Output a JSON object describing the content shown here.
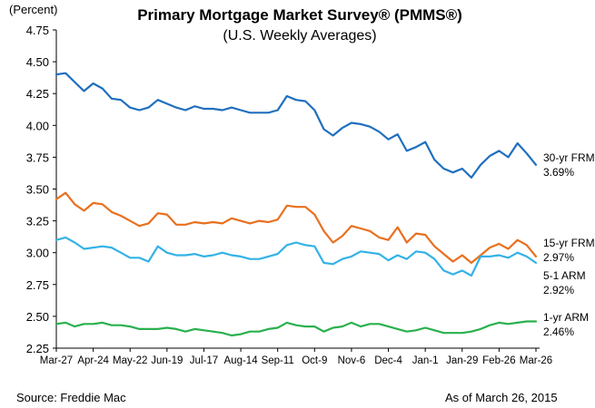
{
  "chart_data": {
    "type": "line",
    "title": "Primary Mortgage Market Survey® (PMMS®)",
    "subtitle": "(U.S. Weekly Averages)",
    "ylabel": "(Percent)",
    "xlabel": "",
    "ylim": [
      2.25,
      4.75
    ],
    "yticks": [
      "4.75",
      "4.50",
      "4.25",
      "4.00",
      "3.75",
      "3.50",
      "3.25",
      "3.00",
      "2.75",
      "2.50",
      "2.25"
    ],
    "x_tick_labels": [
      "Mar-27",
      "Apr-24",
      "May-22",
      "Jun-19",
      "Jul-17",
      "Aug-14",
      "Sep-11",
      "Oct-9",
      "Nov-6",
      "Dec-4",
      "Jan-1",
      "Jan-29",
      "Feb-26",
      "Mar-26"
    ],
    "grid": false,
    "source": "Source: Freddie Mac",
    "as_of": "As of March 26, 2015",
    "series": [
      {
        "name": "30-yr FRM",
        "end_label": "3.69%",
        "color": "#1f6fbf",
        "values": [
          4.4,
          4.41,
          4.34,
          4.27,
          4.33,
          4.29,
          4.21,
          4.2,
          4.14,
          4.12,
          4.14,
          4.2,
          4.17,
          4.14,
          4.12,
          4.15,
          4.13,
          4.13,
          4.12,
          4.14,
          4.12,
          4.1,
          4.1,
          4.1,
          4.12,
          4.23,
          4.2,
          4.19,
          4.12,
          3.97,
          3.92,
          3.98,
          4.02,
          4.01,
          3.99,
          3.95,
          3.89,
          3.93,
          3.8,
          3.83,
          3.87,
          3.73,
          3.66,
          3.63,
          3.66,
          3.59,
          3.69,
          3.76,
          3.8,
          3.75,
          3.86,
          3.78,
          3.69
        ]
      },
      {
        "name": "15-yr FRM",
        "end_label": "2.97%",
        "color": "#e8701e",
        "values": [
          3.42,
          3.47,
          3.38,
          3.33,
          3.39,
          3.38,
          3.32,
          3.29,
          3.25,
          3.21,
          3.23,
          3.31,
          3.3,
          3.22,
          3.22,
          3.24,
          3.23,
          3.24,
          3.23,
          3.27,
          3.25,
          3.23,
          3.25,
          3.24,
          3.26,
          3.37,
          3.36,
          3.36,
          3.3,
          3.17,
          3.08,
          3.13,
          3.21,
          3.19,
          3.17,
          3.12,
          3.1,
          3.2,
          3.08,
          3.15,
          3.14,
          3.05,
          2.99,
          2.93,
          2.98,
          2.92,
          2.98,
          3.04,
          3.07,
          3.03,
          3.1,
          3.06,
          2.97
        ]
      },
      {
        "name": "5-1 ARM",
        "end_label": "2.92%",
        "color": "#33b2e6",
        "values": [
          3.1,
          3.12,
          3.08,
          3.03,
          3.04,
          3.05,
          3.04,
          3.0,
          2.96,
          2.96,
          2.93,
          3.05,
          3.0,
          2.98,
          2.98,
          2.99,
          2.97,
          2.98,
          3.0,
          2.98,
          2.97,
          2.95,
          2.95,
          2.97,
          2.99,
          3.06,
          3.08,
          3.06,
          3.05,
          2.92,
          2.91,
          2.95,
          2.97,
          3.01,
          3.0,
          2.99,
          2.94,
          2.98,
          2.95,
          3.01,
          3.0,
          2.95,
          2.86,
          2.83,
          2.86,
          2.82,
          2.97,
          2.97,
          2.98,
          2.96,
          3.0,
          2.97,
          2.92
        ]
      },
      {
        "name": "1-yr ARM",
        "end_label": "2.46%",
        "color": "#2ab04e",
        "values": [
          2.44,
          2.45,
          2.42,
          2.44,
          2.44,
          2.45,
          2.43,
          2.43,
          2.42,
          2.4,
          2.4,
          2.4,
          2.41,
          2.4,
          2.38,
          2.4,
          2.39,
          2.38,
          2.37,
          2.35,
          2.36,
          2.38,
          2.38,
          2.4,
          2.41,
          2.45,
          2.43,
          2.42,
          2.42,
          2.38,
          2.41,
          2.42,
          2.45,
          2.42,
          2.44,
          2.44,
          2.42,
          2.4,
          2.38,
          2.39,
          2.41,
          2.39,
          2.37,
          2.37,
          2.37,
          2.38,
          2.4,
          2.43,
          2.45,
          2.44,
          2.45,
          2.46,
          2.46
        ]
      }
    ]
  }
}
